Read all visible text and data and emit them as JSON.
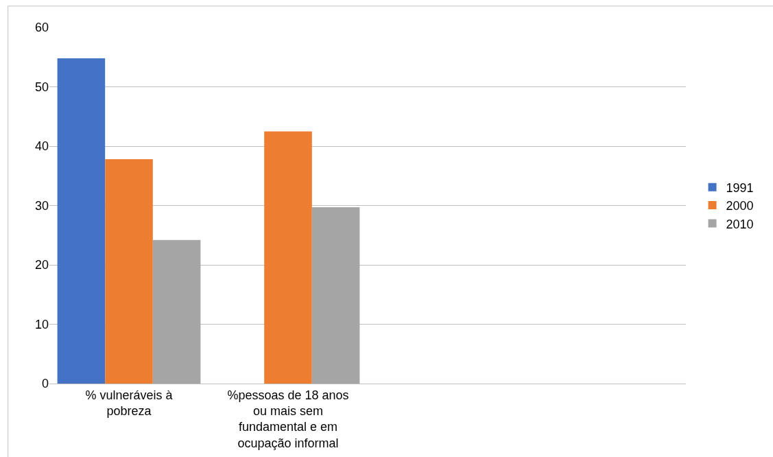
{
  "chart_data": {
    "type": "bar",
    "categories": [
      "% vulneráveis à pobreza",
      "%pessoas de 18 anos ou mais sem fundamental e em ocupação informal",
      null,
      null
    ],
    "series": [
      {
        "name": "1991",
        "color": "#4472c4",
        "values": [
          54.8,
          null,
          null,
          null
        ]
      },
      {
        "name": "2000",
        "color": "#ed7d31",
        "values": [
          37.8,
          42.5,
          null,
          null
        ]
      },
      {
        "name": "2010",
        "color": "#a5a5a5",
        "values": [
          24.2,
          29.7,
          null,
          null
        ]
      }
    ],
    "ylim": [
      0,
      60
    ],
    "yticks": [
      0,
      10,
      20,
      30,
      40,
      50,
      60
    ],
    "grid": "y",
    "legend": "right"
  }
}
